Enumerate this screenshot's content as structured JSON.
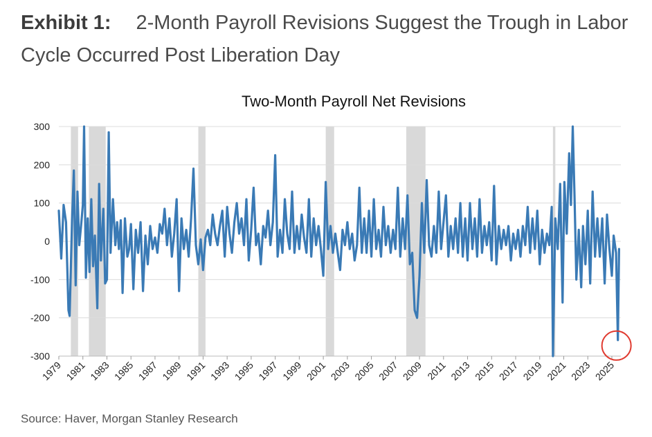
{
  "exhibit": {
    "label": "Exhibit 1:",
    "title": "2-Month Payroll Revisions Suggest the Trough in Labor Cycle Occurred Post Liberation Day"
  },
  "source": "Source: Haver, Morgan Stanley Research",
  "colors": {
    "series": "#3a7ab5",
    "recession": "#d9d9d9",
    "grid": "#dcdcdc",
    "marker": "#e03a2f"
  },
  "chart_data": {
    "type": "line",
    "title": "Two-Month Payroll Net Revisions",
    "ylim": [
      -300,
      300
    ],
    "yticks": [
      "300",
      "200",
      "100",
      "0",
      "-100",
      "-200",
      "-300"
    ],
    "xlim": [
      1979,
      2025.75
    ],
    "xticks": [
      "1979",
      "1981",
      "1983",
      "1985",
      "1987",
      "1989",
      "1991",
      "1993",
      "1995",
      "1997",
      "1999",
      "2001",
      "2003",
      "2005",
      "2007",
      "2009",
      "2011",
      "2013",
      "2015",
      "2017",
      "2019",
      "2021",
      "2023",
      "2025"
    ],
    "grid": true,
    "recessions": [
      [
        1980.0,
        1980.6
      ],
      [
        1981.5,
        1982.9
      ],
      [
        1990.6,
        1991.2
      ],
      [
        2001.2,
        2001.9
      ],
      [
        2007.9,
        2009.5
      ],
      [
        2020.1,
        2020.3
      ]
    ],
    "highlight": {
      "x": 2025.5,
      "y": -258,
      "shape": "circle"
    },
    "series": [
      {
        "points": [
          [
            1979.0,
            80
          ],
          [
            1979.2,
            -45
          ],
          [
            1979.4,
            95
          ],
          [
            1979.6,
            50
          ],
          [
            1979.8,
            -180
          ],
          [
            1979.9,
            -195
          ],
          [
            1980.1,
            55
          ],
          [
            1980.25,
            185
          ],
          [
            1980.4,
            -115
          ],
          [
            1980.55,
            130
          ],
          [
            1980.7,
            -10
          ],
          [
            1980.85,
            40
          ],
          [
            1981.0,
            95
          ],
          [
            1981.1,
            300
          ],
          [
            1981.25,
            -95
          ],
          [
            1981.4,
            60
          ],
          [
            1981.55,
            -80
          ],
          [
            1981.7,
            110
          ],
          [
            1981.85,
            -65
          ],
          [
            1982.0,
            15
          ],
          [
            1982.2,
            -175
          ],
          [
            1982.35,
            150
          ],
          [
            1982.5,
            -50
          ],
          [
            1982.7,
            85
          ],
          [
            1982.85,
            -110
          ],
          [
            1983.0,
            -100
          ],
          [
            1983.15,
            285
          ],
          [
            1983.3,
            -30
          ],
          [
            1983.5,
            110
          ],
          [
            1983.7,
            -10
          ],
          [
            1983.85,
            50
          ],
          [
            1984.0,
            -20
          ],
          [
            1984.15,
            55
          ],
          [
            1984.3,
            -135
          ],
          [
            1984.5,
            60
          ],
          [
            1984.7,
            -40
          ],
          [
            1984.85,
            -20
          ],
          [
            1985.0,
            45
          ],
          [
            1985.2,
            -125
          ],
          [
            1985.4,
            30
          ],
          [
            1985.6,
            -30
          ],
          [
            1985.8,
            50
          ],
          [
            1986.0,
            -130
          ],
          [
            1986.2,
            15
          ],
          [
            1986.4,
            -60
          ],
          [
            1986.6,
            40
          ],
          [
            1986.8,
            -20
          ],
          [
            1987.0,
            10
          ],
          [
            1987.2,
            -30
          ],
          [
            1987.4,
            45
          ],
          [
            1987.6,
            20
          ],
          [
            1987.8,
            85
          ],
          [
            1988.0,
            -10
          ],
          [
            1988.2,
            60
          ],
          [
            1988.4,
            -40
          ],
          [
            1988.6,
            20
          ],
          [
            1988.8,
            110
          ],
          [
            1989.0,
            -130
          ],
          [
            1989.2,
            60
          ],
          [
            1989.4,
            -20
          ],
          [
            1989.6,
            30
          ],
          [
            1989.8,
            -40
          ],
          [
            1990.0,
            60
          ],
          [
            1990.2,
            190
          ],
          [
            1990.4,
            -10
          ],
          [
            1990.6,
            -60
          ],
          [
            1990.8,
            5
          ],
          [
            1991.0,
            -75
          ],
          [
            1991.2,
            10
          ],
          [
            1991.4,
            30
          ],
          [
            1991.6,
            -10
          ],
          [
            1991.8,
            70
          ],
          [
            1992.0,
            20
          ],
          [
            1992.2,
            -10
          ],
          [
            1992.4,
            40
          ],
          [
            1992.6,
            80
          ],
          [
            1992.8,
            -40
          ],
          [
            1993.0,
            90
          ],
          [
            1993.2,
            20
          ],
          [
            1993.4,
            -30
          ],
          [
            1993.6,
            50
          ],
          [
            1993.8,
            100
          ],
          [
            1994.0,
            20
          ],
          [
            1994.2,
            60
          ],
          [
            1994.4,
            -10
          ],
          [
            1994.6,
            110
          ],
          [
            1994.8,
            -50
          ],
          [
            1995.0,
            30
          ],
          [
            1995.2,
            140
          ],
          [
            1995.4,
            -10
          ],
          [
            1995.6,
            20
          ],
          [
            1995.8,
            -60
          ],
          [
            1996.0,
            40
          ],
          [
            1996.2,
            10
          ],
          [
            1996.4,
            80
          ],
          [
            1996.6,
            -10
          ],
          [
            1996.8,
            50
          ],
          [
            1997.0,
            225
          ],
          [
            1997.2,
            -40
          ],
          [
            1997.4,
            30
          ],
          [
            1997.6,
            -30
          ],
          [
            1997.8,
            110
          ],
          [
            1998.0,
            20
          ],
          [
            1998.2,
            -20
          ],
          [
            1998.4,
            130
          ],
          [
            1998.6,
            -30
          ],
          [
            1998.8,
            40
          ],
          [
            1999.0,
            -20
          ],
          [
            1999.2,
            70
          ],
          [
            1999.4,
            10
          ],
          [
            1999.6,
            -30
          ],
          [
            1999.8,
            110
          ],
          [
            2000.0,
            -40
          ],
          [
            2000.2,
            60
          ],
          [
            2000.4,
            -10
          ],
          [
            2000.6,
            40
          ],
          [
            2000.8,
            -20
          ],
          [
            2001.0,
            -90
          ],
          [
            2001.2,
            155
          ],
          [
            2001.4,
            -20
          ],
          [
            2001.6,
            40
          ],
          [
            2001.8,
            -30
          ],
          [
            2002.0,
            20
          ],
          [
            2002.2,
            -30
          ],
          [
            2002.4,
            -75
          ],
          [
            2002.6,
            30
          ],
          [
            2002.8,
            -10
          ],
          [
            2003.0,
            50
          ],
          [
            2003.2,
            -20
          ],
          [
            2003.4,
            20
          ],
          [
            2003.6,
            -50
          ],
          [
            2003.8,
            -10
          ],
          [
            2004.0,
            140
          ],
          [
            2004.2,
            -30
          ],
          [
            2004.4,
            60
          ],
          [
            2004.6,
            -30
          ],
          [
            2004.8,
            80
          ],
          [
            2005.0,
            -40
          ],
          [
            2005.2,
            110
          ],
          [
            2005.4,
            -20
          ],
          [
            2005.6,
            30
          ],
          [
            2005.8,
            -40
          ],
          [
            2006.0,
            90
          ],
          [
            2006.2,
            -10
          ],
          [
            2006.4,
            40
          ],
          [
            2006.6,
            -30
          ],
          [
            2006.8,
            30
          ],
          [
            2007.0,
            -20
          ],
          [
            2007.2,
            140
          ],
          [
            2007.4,
            -40
          ],
          [
            2007.6,
            60
          ],
          [
            2007.8,
            -20
          ],
          [
            2008.0,
            120
          ],
          [
            2008.2,
            -60
          ],
          [
            2008.4,
            -30
          ],
          [
            2008.6,
            -180
          ],
          [
            2008.8,
            -200
          ],
          [
            2009.0,
            -90
          ],
          [
            2009.2,
            100
          ],
          [
            2009.4,
            -30
          ],
          [
            2009.6,
            160
          ],
          [
            2009.8,
            -10
          ],
          [
            2010.0,
            -40
          ],
          [
            2010.2,
            40
          ],
          [
            2010.4,
            -30
          ],
          [
            2010.6,
            130
          ],
          [
            2010.8,
            -20
          ],
          [
            2011.0,
            50
          ],
          [
            2011.2,
            120
          ],
          [
            2011.4,
            -40
          ],
          [
            2011.6,
            40
          ],
          [
            2011.8,
            -20
          ],
          [
            2012.0,
            60
          ],
          [
            2012.2,
            -30
          ],
          [
            2012.4,
            100
          ],
          [
            2012.6,
            -40
          ],
          [
            2012.8,
            60
          ],
          [
            2013.0,
            -50
          ],
          [
            2013.2,
            100
          ],
          [
            2013.4,
            -20
          ],
          [
            2013.6,
            60
          ],
          [
            2013.8,
            -40
          ],
          [
            2014.0,
            110
          ],
          [
            2014.2,
            -30
          ],
          [
            2014.4,
            40
          ],
          [
            2014.6,
            -10
          ],
          [
            2014.8,
            50
          ],
          [
            2015.0,
            -50
          ],
          [
            2015.2,
            145
          ],
          [
            2015.4,
            -60
          ],
          [
            2015.6,
            40
          ],
          [
            2015.8,
            -20
          ],
          [
            2016.0,
            30
          ],
          [
            2016.2,
            -10
          ],
          [
            2016.4,
            40
          ],
          [
            2016.6,
            -50
          ],
          [
            2016.8,
            20
          ],
          [
            2017.0,
            -20
          ],
          [
            2017.2,
            30
          ],
          [
            2017.4,
            -40
          ],
          [
            2017.6,
            40
          ],
          [
            2017.8,
            -10
          ],
          [
            2018.0,
            90
          ],
          [
            2018.2,
            -30
          ],
          [
            2018.4,
            60
          ],
          [
            2018.6,
            -20
          ],
          [
            2018.8,
            80
          ],
          [
            2019.0,
            -60
          ],
          [
            2019.2,
            30
          ],
          [
            2019.4,
            -30
          ],
          [
            2019.6,
            20
          ],
          [
            2019.8,
            -10
          ],
          [
            2020.0,
            90
          ],
          [
            2020.1,
            -305
          ],
          [
            2020.3,
            60
          ],
          [
            2020.5,
            -20
          ],
          [
            2020.7,
            150
          ],
          [
            2020.9,
            -160
          ],
          [
            2021.05,
            155
          ],
          [
            2021.25,
            20
          ],
          [
            2021.45,
            230
          ],
          [
            2021.6,
            95
          ],
          [
            2021.75,
            300
          ],
          [
            2021.9,
            115
          ],
          [
            2022.05,
            -100
          ],
          [
            2022.25,
            30
          ],
          [
            2022.45,
            -120
          ],
          [
            2022.6,
            40
          ],
          [
            2022.8,
            -60
          ],
          [
            2023.0,
            80
          ],
          [
            2023.2,
            -110
          ],
          [
            2023.4,
            130
          ],
          [
            2023.6,
            -40
          ],
          [
            2023.8,
            60
          ],
          [
            2024.0,
            -40
          ],
          [
            2024.2,
            60
          ],
          [
            2024.4,
            -110
          ],
          [
            2024.6,
            70
          ],
          [
            2024.8,
            -20
          ],
          [
            2025.0,
            -90
          ],
          [
            2025.15,
            15
          ],
          [
            2025.35,
            -30
          ],
          [
            2025.5,
            -258
          ],
          [
            2025.6,
            -20
          ]
        ]
      }
    ]
  }
}
